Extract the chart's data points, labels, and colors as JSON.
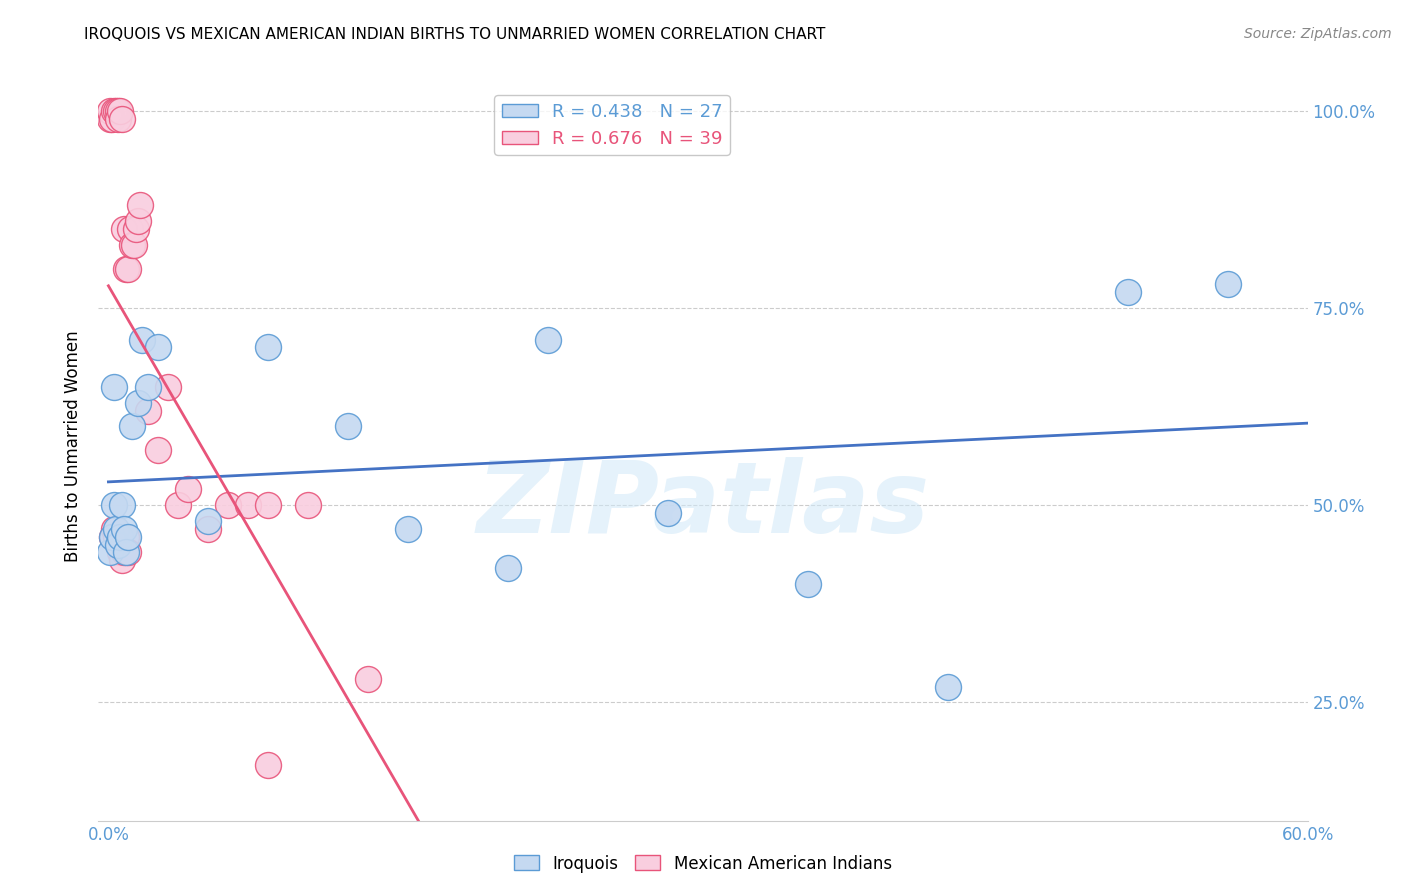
{
  "title": "IROQUOIS VS MEXICAN AMERICAN INDIAN BIRTHS TO UNMARRIED WOMEN CORRELATION CHART",
  "source": "Source: ZipAtlas.com",
  "ylabel": "Births to Unmarried Women",
  "xlim": [
    -0.005,
    0.6
  ],
  "ylim": [
    0.1,
    1.05
  ],
  "iroquois_R": 0.438,
  "iroquois_N": 27,
  "mexican_R": 0.676,
  "mexican_N": 39,
  "watermark": "ZIPatlas",
  "blue_fill": "#C5D9F1",
  "blue_edge": "#5B9BD5",
  "pink_fill": "#F9CEDF",
  "pink_edge": "#E8547A",
  "blue_line": "#4472C4",
  "pink_line": "#E8547A",
  "iroquois_x": [
    0.001,
    0.002,
    0.003,
    0.004,
    0.005,
    0.006,
    0.007,
    0.008,
    0.009,
    0.01,
    0.012,
    0.015,
    0.017,
    0.02,
    0.025,
    0.05,
    0.08,
    0.12,
    0.15,
    0.2,
    0.22,
    0.28,
    0.35,
    0.42,
    0.51,
    0.56,
    0.003
  ],
  "iroquois_y": [
    0.44,
    0.46,
    0.5,
    0.47,
    0.45,
    0.46,
    0.5,
    0.47,
    0.44,
    0.46,
    0.6,
    0.63,
    0.71,
    0.65,
    0.7,
    0.48,
    0.7,
    0.6,
    0.47,
    0.42,
    0.71,
    0.49,
    0.4,
    0.27,
    0.77,
    0.78,
    0.65
  ],
  "mexican_x": [
    0.001,
    0.001,
    0.002,
    0.003,
    0.004,
    0.005,
    0.005,
    0.006,
    0.007,
    0.008,
    0.009,
    0.01,
    0.011,
    0.012,
    0.013,
    0.014,
    0.015,
    0.016,
    0.002,
    0.003,
    0.004,
    0.005,
    0.006,
    0.007,
    0.008,
    0.009,
    0.01,
    0.02,
    0.025,
    0.03,
    0.035,
    0.04,
    0.05,
    0.06,
    0.07,
    0.08,
    0.1,
    0.13,
    0.08
  ],
  "mexican_y": [
    0.99,
    1.0,
    0.99,
    1.0,
    1.0,
    1.0,
    0.99,
    1.0,
    0.99,
    0.85,
    0.8,
    0.8,
    0.85,
    0.83,
    0.83,
    0.85,
    0.86,
    0.88,
    0.46,
    0.47,
    0.46,
    0.45,
    0.44,
    0.43,
    0.44,
    0.46,
    0.44,
    0.62,
    0.57,
    0.65,
    0.5,
    0.52,
    0.47,
    0.5,
    0.5,
    0.5,
    0.5,
    0.28,
    0.17
  ],
  "grid_lines": [
    0.25,
    0.5,
    0.75,
    1.0
  ],
  "ytick_right": [
    0.25,
    0.5,
    0.75,
    1.0
  ],
  "ytick_right_labels": [
    "25.0%",
    "50.0%",
    "75.0%",
    "100.0%"
  ],
  "xtick_vals": [
    0.0,
    0.1,
    0.2,
    0.3,
    0.4,
    0.5,
    0.6
  ],
  "xtick_labels": [
    "0.0%",
    "",
    "",
    "",
    "",
    "",
    "60.0%"
  ]
}
